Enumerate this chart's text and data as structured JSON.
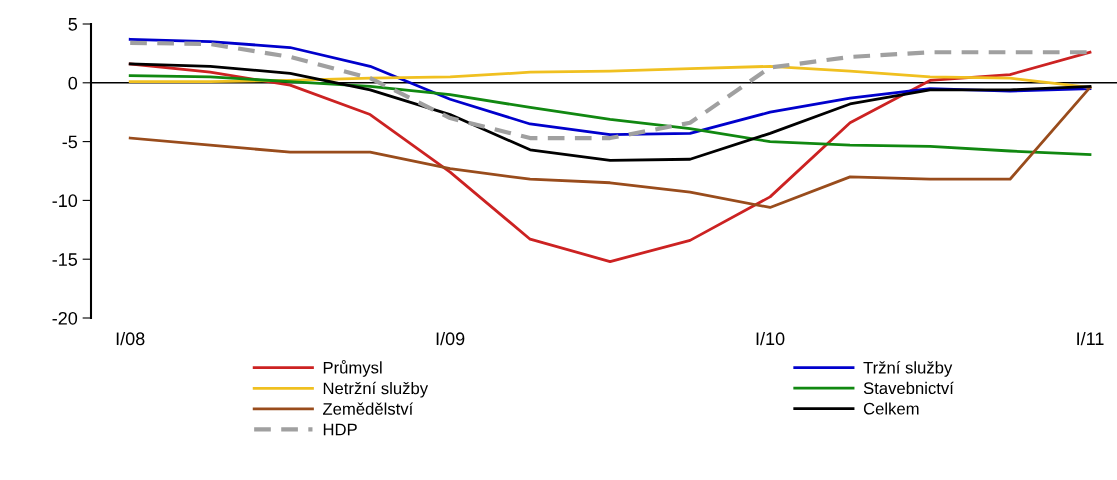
{
  "chart_data": {
    "type": "line",
    "categories": [
      "I/08",
      null,
      null,
      null,
      "I/09",
      null,
      null,
      null,
      "I/10",
      null,
      null,
      null,
      "I/11"
    ],
    "series": [
      {
        "name": "Průmysl",
        "color": "#cc2222",
        "values": [
          1.6,
          0.9,
          -0.2,
          -2.7,
          -7.6,
          -13.3,
          -15.2,
          -13.4,
          -9.7,
          -3.4,
          0.2,
          0.7,
          2.6
        ]
      },
      {
        "name": "Tržní služby",
        "color": "#0000cc",
        "values": [
          3.7,
          3.5,
          3.0,
          1.4,
          -1.4,
          -3.5,
          -4.4,
          -4.3,
          -2.5,
          -1.3,
          -0.5,
          -0.7,
          -0.5
        ]
      },
      {
        "name": "Netržní služby",
        "color": "#f0c020",
        "values": [
          0.1,
          0.1,
          0.2,
          0.4,
          0.5,
          0.9,
          1.0,
          1.2,
          1.4,
          1.0,
          0.5,
          0.4,
          -0.4
        ]
      },
      {
        "name": "Stavebnictví",
        "color": "#118811",
        "values": [
          0.6,
          0.5,
          0.1,
          -0.3,
          -1.0,
          -2.1,
          -3.1,
          -3.9,
          -5.0,
          -5.3,
          -5.4,
          -5.8,
          -6.1
        ]
      },
      {
        "name": "Zemědělství",
        "color": "#994c1c",
        "values": [
          -4.7,
          -5.3,
          -5.9,
          -5.9,
          -7.3,
          -8.2,
          -8.5,
          -9.3,
          -10.6,
          -8.0,
          -8.2,
          -8.2,
          -0.4
        ]
      },
      {
        "name": "Celkem",
        "color": "#000000",
        "values": [
          1.6,
          1.4,
          0.8,
          -0.6,
          -2.7,
          -5.7,
          -6.6,
          -6.5,
          -4.3,
          -1.8,
          -0.6,
          -0.6,
          -0.3
        ]
      },
      {
        "name": "HDP",
        "color": "#a0a0a0",
        "line_style": "dashed",
        "values": [
          3.4,
          3.3,
          2.2,
          0.4,
          -3.0,
          -4.7,
          -4.7,
          -3.4,
          1.3,
          2.2,
          2.6,
          2.6,
          2.6
        ]
      }
    ],
    "ylim": [
      -20,
      5
    ],
    "yticks": [
      -20,
      -15,
      -10,
      -5,
      0,
      5
    ],
    "ref_lines": [
      {
        "axis": "y",
        "value": 0,
        "color": "#000000"
      }
    ],
    "grid": false,
    "legend": "bottom",
    "marker": "none",
    "line_style": "solid"
  }
}
